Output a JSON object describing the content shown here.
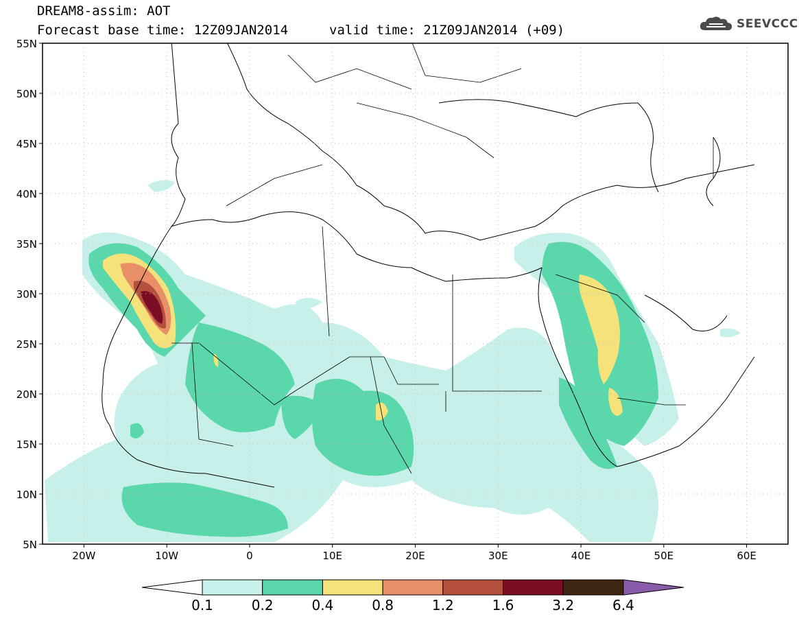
{
  "header": {
    "line1": "DREAM8-assim: AOT",
    "line2": "Forecast base time: 12Z09JAN2014",
    "valid": "valid time: 21Z09JAN2014 (+09)"
  },
  "logo": {
    "text": "SEEVCCC",
    "icon": "cloud-icon"
  },
  "map": {
    "lat_labels": [
      "55N",
      "50N",
      "45N",
      "40N",
      "35N",
      "30N",
      "25N",
      "20N",
      "15N",
      "10N",
      "5N"
    ],
    "lon_labels": [
      "20W",
      "10W",
      "0",
      "10E",
      "20E",
      "30E",
      "40E",
      "50E",
      "60E"
    ],
    "extent": {
      "lon_min": -25,
      "lon_max": 65,
      "lat_min": 5,
      "lat_max": 55
    }
  },
  "legend": {
    "labels": [
      "0.1",
      "0.2",
      "0.4",
      "0.8",
      "1.2",
      "1.6",
      "3.2",
      "6.4"
    ],
    "colors": [
      "#ffffff",
      "#c8f0ea",
      "#5ad8ac",
      "#f5e27a",
      "#e98f68",
      "#b5503d",
      "#7b0d24",
      "#3f2614",
      "#8a5ba8"
    ]
  }
}
